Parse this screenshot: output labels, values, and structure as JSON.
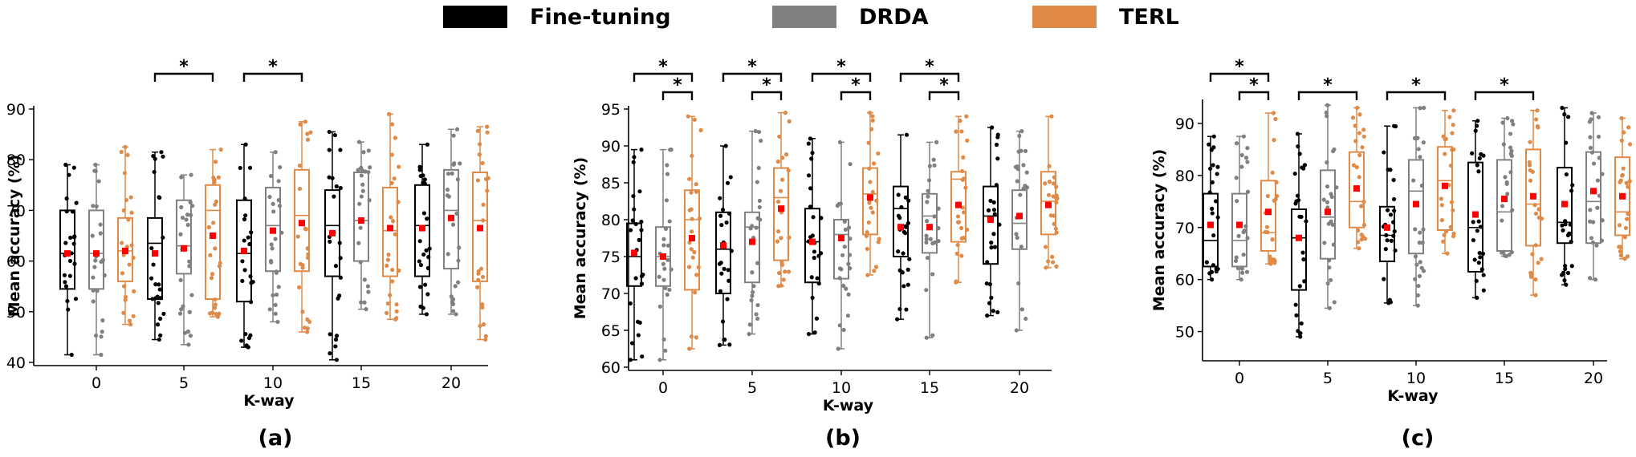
{
  "legend": {
    "items": [
      {
        "label": "Fine-tuning",
        "color": "#000000"
      },
      {
        "label": "DRDA",
        "color": "#808080"
      },
      {
        "label": "TERL",
        "color": "#E08A48"
      }
    ]
  },
  "chart_data": [
    {
      "type": "box",
      "panel_label": "(a)",
      "xlabel": "K-way",
      "ylabel": "Mean accuracy (%)",
      "categories": [
        "0",
        "5",
        "10",
        "15",
        "20"
      ],
      "ylim": [
        40,
        90
      ],
      "yticks": [
        40,
        50,
        60,
        70,
        80,
        90
      ],
      "series": [
        {
          "name": "Fine-tuning",
          "boxes": [
            {
              "whislo": 41.5,
              "q1": 54.5,
              "med": 61.5,
              "q3": 70,
              "whishi": 79,
              "mean": 61.5
            },
            {
              "whislo": 44.5,
              "q1": 52.5,
              "med": 63.5,
              "q3": 68.5,
              "whishi": 81.5,
              "mean": 61.5
            },
            {
              "whislo": 43,
              "q1": 52,
              "med": 61.5,
              "q3": 72,
              "whishi": 83,
              "mean": 62
            },
            {
              "whislo": 40.5,
              "q1": 57,
              "med": 67,
              "q3": 74,
              "whishi": 85.5,
              "mean": 65.5
            },
            {
              "whislo": 49.5,
              "q1": 57,
              "med": 67,
              "q3": 75,
              "whishi": 83,
              "mean": 66.5
            }
          ]
        },
        {
          "name": "DRDA",
          "boxes": [
            {
              "whislo": 41.5,
              "q1": 54.5,
              "med": 61.5,
              "q3": 70,
              "whishi": 79,
              "mean": 61.5
            },
            {
              "whislo": 43.5,
              "q1": 57.5,
              "med": 63,
              "q3": 72,
              "whishi": 77,
              "mean": 62.5
            },
            {
              "whislo": 48,
              "q1": 58,
              "med": 67,
              "q3": 74.5,
              "whishi": 81.5,
              "mean": 66
            },
            {
              "whislo": 50.5,
              "q1": 60,
              "med": 68,
              "q3": 77.5,
              "whishi": 83.5,
              "mean": 68
            },
            {
              "whislo": 49.5,
              "q1": 58.5,
              "med": 70,
              "q3": 78,
              "whishi": 86,
              "mean": 68.5
            }
          ]
        },
        {
          "name": "TERL",
          "boxes": [
            {
              "whislo": 47.5,
              "q1": 56,
              "med": 62,
              "q3": 68.5,
              "whishi": 82.5,
              "mean": 62
            },
            {
              "whislo": 49,
              "q1": 52.5,
              "med": 70,
              "q3": 75,
              "whishi": 82,
              "mean": 65
            },
            {
              "whislo": 46,
              "q1": 58,
              "med": 69,
              "q3": 78,
              "whishi": 87.5,
              "mean": 67.5
            },
            {
              "whislo": 48.5,
              "q1": 57,
              "med": 66,
              "q3": 74.5,
              "whishi": 89,
              "mean": 66.5
            },
            {
              "whislo": 44.5,
              "q1": 56,
              "med": 68,
              "q3": 77.5,
              "whishi": 86.5,
              "mean": 66.5
            }
          ]
        }
      ],
      "significance": [
        {
          "group": 1,
          "from": "Fine-tuning",
          "to": "TERL",
          "level": 0,
          "label": "*"
        },
        {
          "group": 2,
          "from": "Fine-tuning",
          "to": "TERL",
          "level": 0,
          "label": "*"
        }
      ]
    },
    {
      "type": "box",
      "panel_label": "(b)",
      "xlabel": "K-way",
      "ylabel": "Mean accuracy (%)",
      "categories": [
        "0",
        "5",
        "10",
        "15",
        "20"
      ],
      "ylim": [
        60,
        95
      ],
      "yticks": [
        60,
        65,
        70,
        75,
        80,
        85,
        90,
        95
      ],
      "series": [
        {
          "name": "Fine-tuning",
          "boxes": [
            {
              "whislo": 61,
              "q1": 71,
              "med": 75,
              "q3": 79.5,
              "whishi": 89.5,
              "mean": 75.5
            },
            {
              "whislo": 63,
              "q1": 70,
              "med": 76,
              "q3": 81,
              "whishi": 90,
              "mean": 76.5
            },
            {
              "whislo": 64.5,
              "q1": 71.5,
              "med": 77,
              "q3": 81.5,
              "whishi": 91,
              "mean": 77
            },
            {
              "whislo": 66.5,
              "q1": 75,
              "med": 81.5,
              "q3": 84.5,
              "whishi": 91.5,
              "mean": 79
            },
            {
              "whislo": 67,
              "q1": 74,
              "med": 80.5,
              "q3": 84.5,
              "whishi": 92.5,
              "mean": 80
            }
          ]
        },
        {
          "name": "DRDA",
          "boxes": [
            {
              "whislo": 61,
              "q1": 71,
              "med": 75,
              "q3": 79,
              "whishi": 89.5,
              "mean": 75
            },
            {
              "whislo": 64.5,
              "q1": 71.5,
              "med": 79,
              "q3": 81,
              "whishi": 92,
              "mean": 77
            },
            {
              "whislo": 62.5,
              "q1": 72,
              "med": 78,
              "q3": 80,
              "whishi": 90.5,
              "mean": 77.5
            },
            {
              "whislo": 64,
              "q1": 75.5,
              "med": 80.5,
              "q3": 83.5,
              "whishi": 90.5,
              "mean": 79
            },
            {
              "whislo": 65,
              "q1": 76,
              "med": 79.5,
              "q3": 84,
              "whishi": 92,
              "mean": 80.5
            }
          ]
        },
        {
          "name": "TERL",
          "boxes": [
            {
              "whislo": 62.5,
              "q1": 70.5,
              "med": 80,
              "q3": 84,
              "whishi": 94,
              "mean": 77.5
            },
            {
              "whislo": 71,
              "q1": 74.5,
              "med": 83,
              "q3": 87,
              "whishi": 94.5,
              "mean": 81.5
            },
            {
              "whislo": 72.5,
              "q1": 78,
              "med": 83.5,
              "q3": 87,
              "whishi": 94.5,
              "mean": 83
            },
            {
              "whislo": 71.5,
              "q1": 77,
              "med": 85.5,
              "q3": 86.5,
              "whishi": 94,
              "mean": 82
            },
            {
              "whislo": 73.5,
              "q1": 78,
              "med": 82.5,
              "q3": 86.5,
              "whishi": 94,
              "mean": 82
            }
          ]
        }
      ],
      "significance": [
        {
          "group": 0,
          "from": "Fine-tuning",
          "to": "TERL",
          "level": 1,
          "label": "*"
        },
        {
          "group": 0,
          "from": "DRDA",
          "to": "TERL",
          "level": 0,
          "label": "*"
        },
        {
          "group": 1,
          "from": "Fine-tuning",
          "to": "TERL",
          "level": 1,
          "label": "*"
        },
        {
          "group": 1,
          "from": "DRDA",
          "to": "TERL",
          "level": 0,
          "label": "*"
        },
        {
          "group": 2,
          "from": "Fine-tuning",
          "to": "TERL",
          "level": 1,
          "label": "*"
        },
        {
          "group": 2,
          "from": "DRDA",
          "to": "TERL",
          "level": 0,
          "label": "*"
        },
        {
          "group": 3,
          "from": "Fine-tuning",
          "to": "TERL",
          "level": 1,
          "label": "*"
        },
        {
          "group": 3,
          "from": "DRDA",
          "to": "TERL",
          "level": 0,
          "label": "*"
        }
      ]
    },
    {
      "type": "box",
      "panel_label": "(c)",
      "xlabel": "K-way",
      "ylabel": "Mean accuracy (%)",
      "categories": [
        "0",
        "5",
        "10",
        "15",
        "20"
      ],
      "ylim": [
        45,
        94
      ],
      "yticks": [
        50,
        60,
        70,
        80,
        90
      ],
      "series": [
        {
          "name": "Fine-tuning",
          "boxes": [
            {
              "whislo": 60,
              "q1": 62.5,
              "med": 67.5,
              "q3": 76.5,
              "whishi": 87.5,
              "mean": 70.5
            },
            {
              "whislo": 49,
              "q1": 58,
              "med": 68,
              "q3": 73.5,
              "whishi": 88,
              "mean": 68
            },
            {
              "whislo": 55.5,
              "q1": 63.5,
              "med": 68.5,
              "q3": 74,
              "whishi": 89.5,
              "mean": 70
            },
            {
              "whislo": 56.5,
              "q1": 61.5,
              "med": 70,
              "q3": 82.5,
              "whishi": 90.5,
              "mean": 72.5
            },
            {
              "whislo": 59,
              "q1": 67,
              "med": 71,
              "q3": 81.5,
              "whishi": 93,
              "mean": 74.5
            }
          ]
        },
        {
          "name": "DRDA",
          "boxes": [
            {
              "whislo": 60,
              "q1": 62.5,
              "med": 67.5,
              "q3": 76.5,
              "whishi": 87.5,
              "mean": 70.5
            },
            {
              "whislo": 54.5,
              "q1": 64,
              "med": 72,
              "q3": 81,
              "whishi": 93.5,
              "mean": 73
            },
            {
              "whislo": 55,
              "q1": 65,
              "med": 77,
              "q3": 83,
              "whishi": 93,
              "mean": 74.5
            },
            {
              "whislo": 64.5,
              "q1": 65.5,
              "med": 73,
              "q3": 83,
              "whishi": 91,
              "mean": 75.5
            },
            {
              "whislo": 60,
              "q1": 67,
              "med": 75,
              "q3": 84.5,
              "whishi": 92,
              "mean": 77
            }
          ]
        },
        {
          "name": "TERL",
          "boxes": [
            {
              "whislo": 63,
              "q1": 65.5,
              "med": 69,
              "q3": 79,
              "whishi": 92,
              "mean": 73
            },
            {
              "whislo": 66,
              "q1": 70,
              "med": 75,
              "q3": 84.5,
              "whishi": 93,
              "mean": 77.5
            },
            {
              "whislo": 65,
              "q1": 69.5,
              "med": 79,
              "q3": 85.5,
              "whishi": 92.5,
              "mean": 78
            },
            {
              "whislo": 57,
              "q1": 66.5,
              "med": 74.5,
              "q3": 85,
              "whishi": 92.5,
              "mean": 76
            },
            {
              "whislo": 64,
              "q1": 68.5,
              "med": 73,
              "q3": 83.5,
              "whishi": 91,
              "mean": 76
            }
          ]
        }
      ],
      "significance": [
        {
          "group": 0,
          "from": "Fine-tuning",
          "to": "TERL",
          "level": 1,
          "label": "*"
        },
        {
          "group": 0,
          "from": "DRDA",
          "to": "TERL",
          "level": 0,
          "label": "*"
        },
        {
          "group": 1,
          "from": "Fine-tuning",
          "to": "TERL",
          "level": 0,
          "label": "*"
        },
        {
          "group": 2,
          "from": "Fine-tuning",
          "to": "TERL",
          "level": 0,
          "label": "*"
        },
        {
          "group": 3,
          "from": "Fine-tuning",
          "to": "TERL",
          "level": 0,
          "label": "*"
        }
      ]
    }
  ]
}
